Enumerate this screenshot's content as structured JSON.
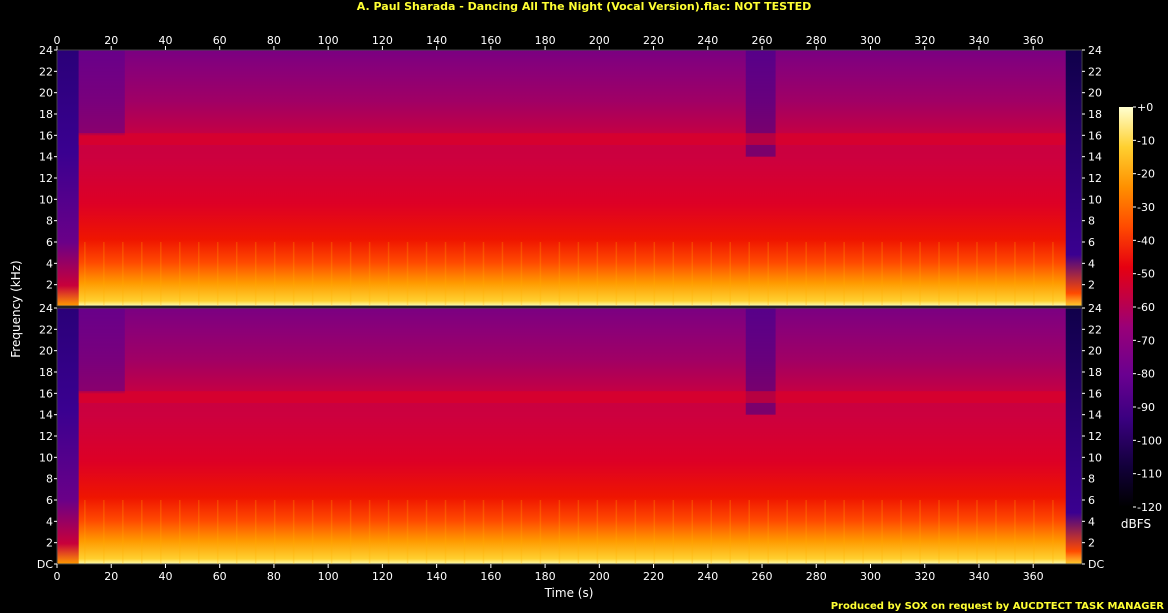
{
  "title": "A. Paul Sharada - Dancing All The Night (Vocal Version).flac: NOT TESTED",
  "footer": "Produced by SOX on request by AUCDTECT TASK MANAGER",
  "colors": {
    "title": "#ffff33",
    "background": "#000000",
    "axis": "#ffffff",
    "colormap": [
      "#000000",
      "#12003a",
      "#2a0070",
      "#4a0090",
      "#780090",
      "#a80068",
      "#d00030",
      "#f01000",
      "#ff5000",
      "#ff9a00",
      "#ffd830",
      "#ffffc0"
    ]
  },
  "chart_data": {
    "type": "heatmap",
    "subtype": "spectrogram",
    "channels": 2,
    "xlabel": "Time (s)",
    "ylabel": "Frequency (kHz)",
    "xlim": [
      0,
      378
    ],
    "ylim": [
      0,
      24
    ],
    "x_ticks": [
      "0",
      "20",
      "40",
      "60",
      "80",
      "100",
      "120",
      "140",
      "160",
      "180",
      "200",
      "220",
      "240",
      "260",
      "280",
      "300",
      "320",
      "340",
      "360"
    ],
    "y_ticks": [
      "DC",
      "2",
      "4",
      "6",
      "8",
      "10",
      "12",
      "14",
      "16",
      "18",
      "20",
      "22",
      "24"
    ],
    "colorbar": {
      "label": "dBFS",
      "range": [
        -120,
        0
      ],
      "ticks": [
        "+0",
        "-10",
        "-20",
        "-30",
        "-40",
        "-50",
        "-60",
        "-70",
        "-80",
        "-90",
        "-100",
        "-110",
        "-120"
      ]
    }
  }
}
